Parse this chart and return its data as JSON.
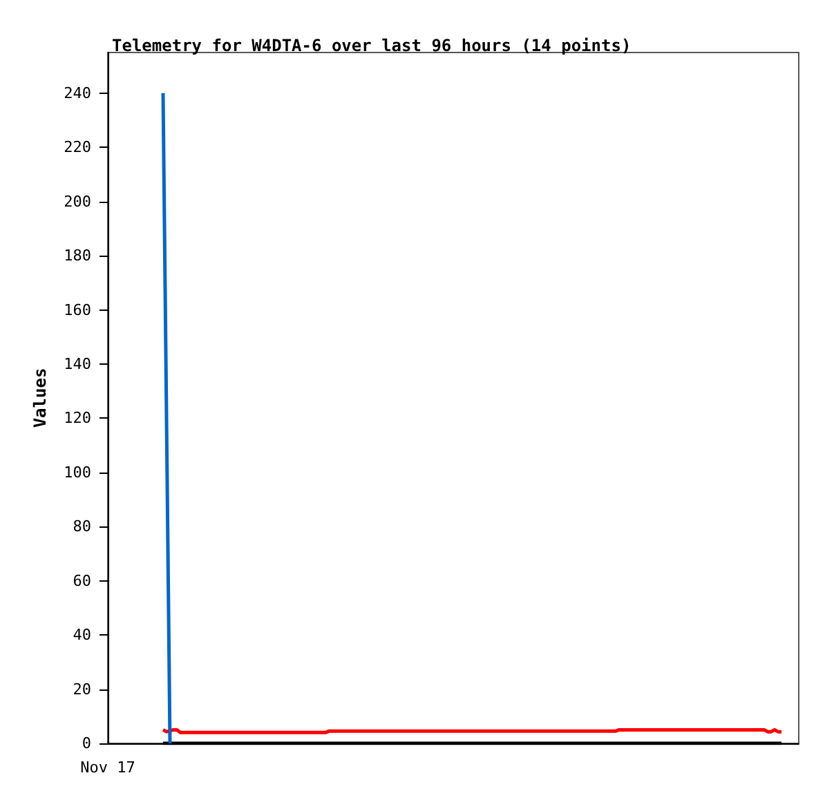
{
  "chart_data": {
    "type": "line",
    "title": "Telemetry for W4DTA-6 over last 96 hours (14 points)",
    "ylabel": "Values",
    "categories": [
      "Nov 17",
      null,
      null,
      null,
      null,
      null,
      null,
      null,
      null,
      null,
      null,
      null,
      null,
      null,
      null,
      null,
      null,
      null,
      null,
      null,
      null,
      null,
      null,
      null,
      null,
      null,
      null,
      null,
      null,
      null,
      null,
      null,
      null,
      null,
      null,
      null,
      null,
      null,
      null,
      null,
      null,
      null,
      null,
      null,
      null,
      null,
      null,
      null,
      null,
      null,
      null,
      null,
      null,
      null,
      null,
      null,
      null,
      null,
      null,
      null,
      null,
      null,
      null,
      null,
      null,
      null,
      null,
      null,
      null,
      null,
      null,
      null,
      null,
      null,
      null,
      null,
      null,
      null,
      null,
      null,
      null,
      null,
      null,
      null,
      null,
      null,
      null,
      null,
      null,
      null,
      null,
      null,
      null,
      null,
      null,
      null,
      null,
      null,
      null,
      null,
      null,
      null,
      null,
      null,
      null,
      null,
      null,
      null,
      null,
      null,
      null,
      null,
      null,
      null,
      null,
      null,
      null,
      null,
      null,
      null,
      null,
      null,
      null,
      null,
      null,
      null,
      null,
      null,
      null,
      null,
      null,
      null,
      null,
      null,
      null,
      null,
      null,
      null,
      null,
      null,
      null,
      null,
      null,
      null,
      null,
      null,
      null,
      null,
      null,
      null,
      null,
      null,
      null,
      null,
      null,
      null,
      null,
      null,
      null,
      null,
      null,
      null,
      null,
      null,
      null,
      null,
      null,
      null,
      null,
      null,
      null,
      null,
      null,
      null,
      null,
      null,
      null,
      null,
      null,
      null,
      null,
      null,
      null,
      null,
      null,
      null,
      null,
      null,
      null,
      null,
      null,
      null,
      null,
      null,
      null,
      null,
      null,
      null,
      null,
      null,
      null
    ],
    "ylim": [
      0,
      255
    ],
    "yticks": [
      0,
      20,
      40,
      60,
      80,
      100,
      120,
      140,
      160,
      180,
      200,
      220,
      240
    ],
    "grid": false,
    "marker": "none",
    "line_style": "solid",
    "series": [
      {
        "color": "#000000",
        "values": [
          null,
          null,
          null,
          null,
          null,
          null,
          null,
          null,
          null,
          null,
          null,
          null,
          null,
          null,
          null,
          null,
          0,
          0,
          0,
          0,
          0,
          0,
          0,
          0,
          0,
          0,
          0,
          0,
          0,
          0,
          0,
          0,
          0,
          0,
          0,
          0,
          0,
          0,
          0,
          0,
          0,
          0,
          0,
          0,
          0,
          0,
          0,
          0,
          0,
          0,
          0,
          0,
          0,
          0,
          0,
          0,
          0,
          0,
          0,
          0,
          0,
          0,
          0,
          0,
          0,
          0,
          0,
          0,
          0,
          0,
          0,
          0,
          0,
          0,
          0,
          0,
          0,
          0,
          0,
          0,
          0,
          0,
          0,
          0,
          0,
          0,
          0,
          0,
          0,
          0,
          0,
          0,
          0,
          0,
          0,
          0,
          0,
          0,
          0,
          0,
          0,
          0,
          0,
          0,
          0,
          0,
          0,
          0,
          0,
          0,
          0,
          0,
          0,
          0,
          0,
          0,
          0,
          0,
          0,
          0,
          0,
          0,
          0,
          0,
          0,
          0,
          0,
          0,
          0,
          0,
          0,
          0,
          0,
          0,
          0,
          0,
          0,
          0,
          0,
          0,
          0,
          0,
          0,
          0,
          0,
          0,
          0,
          0,
          0,
          0,
          0,
          0,
          0,
          0,
          0,
          0,
          0,
          0,
          0,
          0,
          0,
          0,
          0,
          0,
          0,
          0,
          0,
          0,
          0,
          0,
          0,
          0,
          0,
          0,
          0,
          0,
          0,
          0,
          0,
          0,
          0,
          0,
          0,
          0,
          0,
          0,
          0,
          0,
          0,
          0,
          0,
          0,
          0,
          0,
          0,
          0,
          null,
          null,
          null,
          null,
          null
        ]
      },
      {
        "color": "#ff0000",
        "values": [
          null,
          null,
          null,
          null,
          null,
          null,
          null,
          null,
          null,
          null,
          null,
          null,
          null,
          null,
          null,
          null,
          5,
          4.3,
          4.6,
          5,
          5,
          4,
          4,
          4,
          4,
          4,
          4,
          4,
          4,
          4,
          4,
          4,
          4,
          4,
          4,
          4,
          4,
          4,
          4,
          4,
          4,
          4,
          4,
          4,
          4,
          4,
          4,
          4,
          4,
          4,
          4,
          4,
          4,
          4,
          4,
          4,
          4,
          4,
          4,
          4,
          4,
          4,
          4,
          4,
          4.5,
          4.5,
          4.5,
          4.5,
          4.5,
          4.5,
          4.5,
          4.5,
          4.5,
          4.5,
          4.5,
          4.5,
          4.5,
          4.5,
          4.5,
          4.5,
          4.5,
          4.5,
          4.5,
          4.5,
          4.5,
          4.5,
          4.5,
          4.5,
          4.5,
          4.5,
          4.5,
          4.5,
          4.5,
          4.5,
          4.5,
          4.5,
          4.5,
          4.5,
          4.5,
          4.5,
          4.5,
          4.5,
          4.5,
          4.5,
          4.5,
          4.5,
          4.5,
          4.5,
          4.5,
          4.5,
          4.5,
          4.5,
          4.5,
          4.5,
          4.5,
          4.5,
          4.5,
          4.5,
          4.5,
          4.5,
          4.5,
          4.5,
          4.5,
          4.5,
          4.5,
          4.5,
          4.5,
          4.5,
          4.5,
          4.5,
          4.5,
          4.5,
          4.5,
          4.5,
          4.5,
          4.5,
          4.5,
          4.5,
          4.5,
          4.5,
          4.5,
          4.5,
          4.5,
          4.5,
          4.5,
          4.5,
          4.5,
          4.5,
          5,
          5,
          5,
          5,
          5,
          5,
          5,
          5,
          5,
          5,
          5,
          5,
          5,
          5,
          5,
          5,
          5,
          5,
          5,
          5,
          5,
          5,
          5,
          5,
          5,
          5,
          5,
          5,
          5,
          5,
          5,
          5,
          5,
          5,
          5,
          5,
          5,
          5,
          5,
          5,
          5,
          5,
          5,
          4.3,
          4.3,
          5,
          4.3,
          4.3,
          null,
          null,
          null,
          null,
          null
        ]
      },
      {
        "color": "#0066cc",
        "values": [
          null,
          null,
          null,
          null,
          null,
          null,
          null,
          null,
          null,
          null,
          null,
          null,
          null,
          null,
          null,
          null,
          240,
          120,
          0,
          null,
          null,
          null,
          null,
          null,
          null,
          null,
          null,
          null,
          null,
          null,
          null,
          null,
          null,
          null,
          null,
          null,
          null,
          null,
          null,
          null,
          null,
          null,
          null,
          null,
          null,
          null,
          null,
          null,
          null,
          null,
          null,
          null,
          null,
          null,
          null,
          null,
          null,
          null,
          null,
          null,
          null,
          null,
          null,
          null,
          null,
          null,
          null,
          null,
          null,
          null,
          null,
          null,
          null,
          null,
          null,
          null,
          null,
          null,
          null,
          null,
          null,
          null,
          null,
          null,
          null,
          null,
          null,
          null,
          null,
          null,
          null,
          null,
          null,
          null,
          null,
          null,
          null,
          null,
          null,
          null,
          null,
          null,
          null,
          null,
          null,
          null,
          null,
          null,
          null,
          null,
          null,
          null,
          null,
          null,
          null,
          null,
          null,
          null,
          null,
          null,
          null,
          null,
          null,
          null,
          null,
          null,
          null,
          null,
          null,
          null,
          null,
          null,
          null,
          null,
          null,
          null,
          null,
          null,
          null,
          null,
          null,
          null,
          null,
          null,
          null,
          null,
          null,
          null,
          null,
          null,
          null,
          null,
          null,
          null,
          null,
          null,
          null,
          null,
          null,
          null,
          null,
          null,
          null,
          null,
          null,
          null,
          null,
          null,
          null,
          null,
          null,
          null,
          null,
          null,
          null,
          null,
          null,
          null,
          null,
          null,
          null,
          null,
          null,
          null,
          null,
          null,
          null,
          null,
          null,
          null,
          null,
          null,
          null,
          null,
          null,
          null,
          null,
          null,
          null,
          null,
          null
        ]
      }
    ]
  }
}
